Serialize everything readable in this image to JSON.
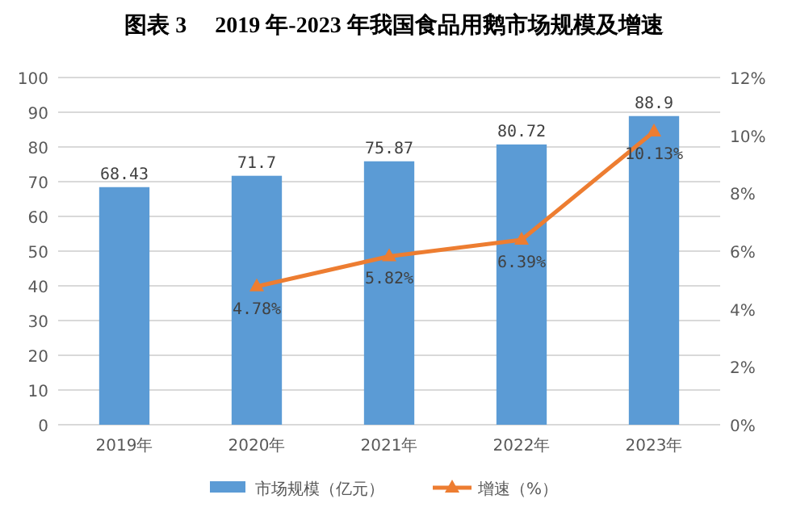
{
  "chart_data": {
    "type": "bar",
    "title": "图表 3　 2019 年-2023 年我国食品用鹅市场规模及增速",
    "categories": [
      "2019年",
      "2020年",
      "2021年",
      "2022年",
      "2023年"
    ],
    "series": [
      {
        "name": "市场规模（亿元）",
        "color": "#5b9bd5",
        "values": [
          68.43,
          71.7,
          75.87,
          80.72,
          88.9
        ],
        "value_labels": [
          "68.43",
          "71.7",
          "75.87",
          "80.72",
          "88.9"
        ]
      },
      {
        "name": "增速（%）",
        "type": "line",
        "axis": "y2",
        "color": "#ed7d31",
        "marker": "triangle",
        "values": [
          null,
          4.78,
          5.82,
          6.39,
          10.13
        ],
        "value_labels": [
          null,
          "4.78%",
          "5.82%",
          "6.39%",
          "10.13%"
        ]
      }
    ],
    "ylim": [
      0,
      100
    ],
    "yticks": [
      0,
      10,
      20,
      30,
      40,
      50,
      60,
      70,
      80,
      90,
      100
    ],
    "y2lim": [
      0,
      12
    ],
    "y2ticks": [
      {
        "value": 0,
        "label": "0%"
      },
      {
        "value": 2,
        "label": "2%"
      },
      {
        "value": 4,
        "label": "4%"
      },
      {
        "value": 6,
        "label": "6%"
      },
      {
        "value": 8,
        "label": "8%"
      },
      {
        "value": 10,
        "label": "10%"
      },
      {
        "value": 12,
        "label": "12%"
      }
    ],
    "grid": "y",
    "legend": "bottom"
  }
}
